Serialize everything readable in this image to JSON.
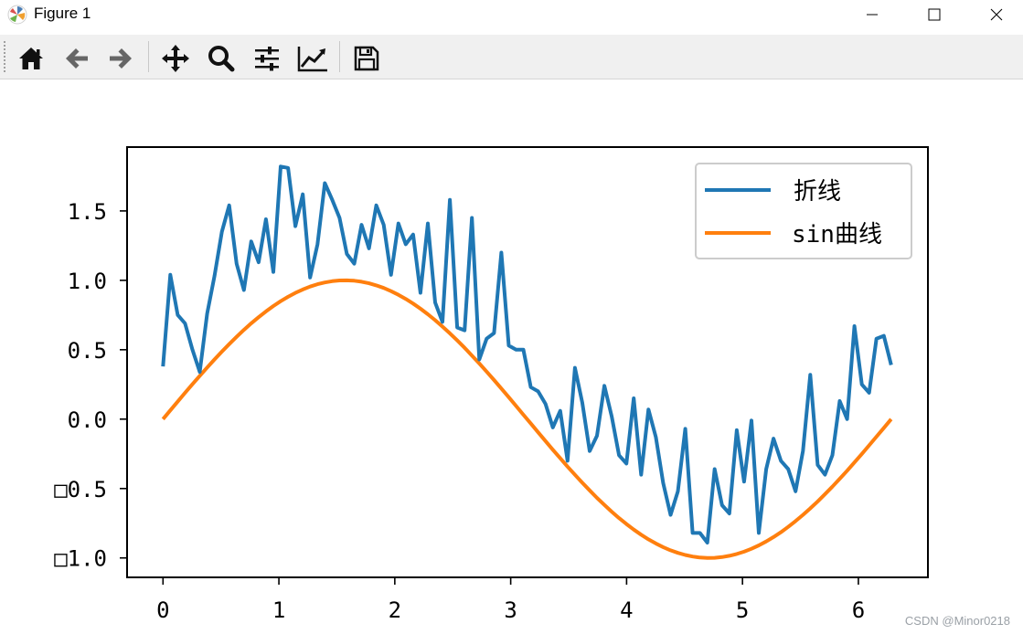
{
  "window": {
    "title": "Figure 1",
    "icon": "matplotlib-icon"
  },
  "window_controls": [
    {
      "name": "minimize-icon"
    },
    {
      "name": "maximize-icon"
    },
    {
      "name": "close-icon"
    }
  ],
  "toolbar": {
    "buttons": [
      {
        "name": "home-button",
        "icon": "home-icon"
      },
      {
        "name": "back-button",
        "icon": "arrow-left-icon"
      },
      {
        "name": "forward-button",
        "icon": "arrow-right-icon"
      },
      {
        "name": "pan-button",
        "icon": "move-icon"
      },
      {
        "name": "zoom-button",
        "icon": "magnifier-icon"
      },
      {
        "name": "configure-subplots-button",
        "icon": "sliders-icon"
      },
      {
        "name": "edit-axis-button",
        "icon": "line-chart-icon"
      },
      {
        "name": "save-button",
        "icon": "floppy-disk-icon"
      }
    ]
  },
  "watermark": "CSDN @Minor0218",
  "chart_data": {
    "type": "line",
    "title": "",
    "xlabel": "",
    "ylabel": "",
    "xlim": [
      -0.31,
      6.6
    ],
    "ylim": [
      -1.14,
      1.96
    ],
    "xticks": [
      {
        "value": 0,
        "label": "0"
      },
      {
        "value": 1,
        "label": "1"
      },
      {
        "value": 2,
        "label": "2"
      },
      {
        "value": 3,
        "label": "3"
      },
      {
        "value": 4,
        "label": "4"
      },
      {
        "value": 5,
        "label": "5"
      },
      {
        "value": 6,
        "label": "6"
      }
    ],
    "yticks": [
      {
        "value": 1.5,
        "label": "1.5"
      },
      {
        "value": 1.0,
        "label": "1.0"
      },
      {
        "value": 0.5,
        "label": "0.5"
      },
      {
        "value": 0.0,
        "label": "0.0"
      },
      {
        "value": -0.5,
        "label": "□0.5"
      },
      {
        "value": -1.0,
        "label": "□1.0"
      }
    ],
    "grid": false,
    "legend_position": "top-right",
    "series": [
      {
        "name": "折线",
        "color": "#1f77b4",
        "x_start": 0,
        "x_end": 6.2832,
        "values": [
          0.38,
          1.04,
          0.75,
          0.69,
          0.5,
          0.34,
          0.76,
          1.03,
          1.35,
          1.54,
          1.12,
          0.93,
          1.28,
          1.13,
          1.44,
          1.06,
          1.82,
          1.81,
          1.39,
          1.62,
          1.02,
          1.26,
          1.7,
          1.58,
          1.45,
          1.19,
          1.12,
          1.4,
          1.23,
          1.54,
          1.4,
          1.04,
          1.41,
          1.26,
          1.33,
          0.91,
          1.41,
          0.84,
          0.7,
          1.58,
          0.66,
          0.64,
          1.45,
          0.43,
          0.58,
          0.62,
          1.2,
          0.53,
          0.5,
          0.5,
          0.23,
          0.2,
          0.11,
          -0.06,
          0.06,
          -0.3,
          0.37,
          0.12,
          -0.23,
          -0.12,
          0.24,
          0.02,
          -0.26,
          -0.32,
          0.15,
          -0.4,
          0.07,
          -0.13,
          -0.46,
          -0.69,
          -0.52,
          -0.07,
          -0.82,
          -0.82,
          -0.89,
          -0.36,
          -0.62,
          -0.68,
          -0.08,
          -0.45,
          -0.01,
          -0.82,
          -0.36,
          -0.14,
          -0.3,
          -0.36,
          -0.52,
          -0.23,
          0.32,
          -0.33,
          -0.4,
          -0.26,
          0.13,
          0.0,
          0.67,
          0.25,
          0.19,
          0.58,
          0.6,
          0.39
        ]
      },
      {
        "name": "sin曲线",
        "color": "#ff7f0e",
        "function": "sin",
        "x_start": 0,
        "x_end": 6.2832,
        "points": 100
      }
    ]
  }
}
